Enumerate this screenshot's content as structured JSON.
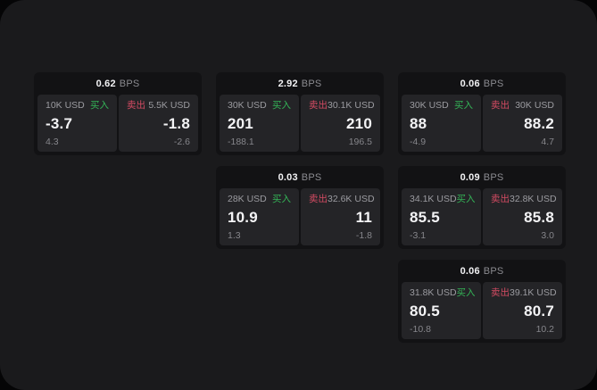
{
  "colors": {
    "buy_accent": "#34b457",
    "sell_accent": "#d44b63",
    "window_bg": "#1a1a1c",
    "card_bg": "#121214",
    "panel_bg": "#242427"
  },
  "cards": [
    {
      "grid": {
        "row": 1,
        "col": 1
      },
      "bps_value": "0.62",
      "bps_unit": "BPS",
      "buy": {
        "size": "10K USD",
        "tag": "买入",
        "price": "-3.7",
        "delta": "4.3"
      },
      "sell": {
        "tag": "卖出",
        "size": "5.5K USD",
        "price": "-1.8",
        "delta": "-2.6"
      }
    },
    {
      "grid": {
        "row": 1,
        "col": 2
      },
      "bps_value": "2.92",
      "bps_unit": "BPS",
      "buy": {
        "size": "30K USD",
        "tag": "买入",
        "price": "201",
        "delta": "-188.1"
      },
      "sell": {
        "tag": "卖出",
        "size": "30.1K USD",
        "price": "210",
        "delta": "196.5"
      }
    },
    {
      "grid": {
        "row": 1,
        "col": 3
      },
      "bps_value": "0.06",
      "bps_unit": "BPS",
      "buy": {
        "size": "30K USD",
        "tag": "买入",
        "price": "88",
        "delta": "-4.9"
      },
      "sell": {
        "tag": "卖出",
        "size": "30K USD",
        "price": "88.2",
        "delta": "4.7"
      }
    },
    {
      "grid": {
        "row": 2,
        "col": 2
      },
      "bps_value": "0.03",
      "bps_unit": "BPS",
      "buy": {
        "size": "28K USD",
        "tag": "买入",
        "price": "10.9",
        "delta": "1.3"
      },
      "sell": {
        "tag": "卖出",
        "size": "32.6K USD",
        "price": "11",
        "delta": "-1.8"
      }
    },
    {
      "grid": {
        "row": 2,
        "col": 3
      },
      "bps_value": "0.09",
      "bps_unit": "BPS",
      "buy": {
        "size": "34.1K USD",
        "tag": "买入",
        "price": "85.5",
        "delta": "-3.1"
      },
      "sell": {
        "tag": "卖出",
        "size": "32.8K USD",
        "price": "85.8",
        "delta": "3.0"
      }
    },
    {
      "grid": {
        "row": 3,
        "col": 3
      },
      "bps_value": "0.06",
      "bps_unit": "BPS",
      "buy": {
        "size": "31.8K USD",
        "tag": "买入",
        "price": "80.5",
        "delta": "-10.8"
      },
      "sell": {
        "tag": "卖出",
        "size": "39.1K USD",
        "price": "80.7",
        "delta": "10.2"
      }
    }
  ]
}
